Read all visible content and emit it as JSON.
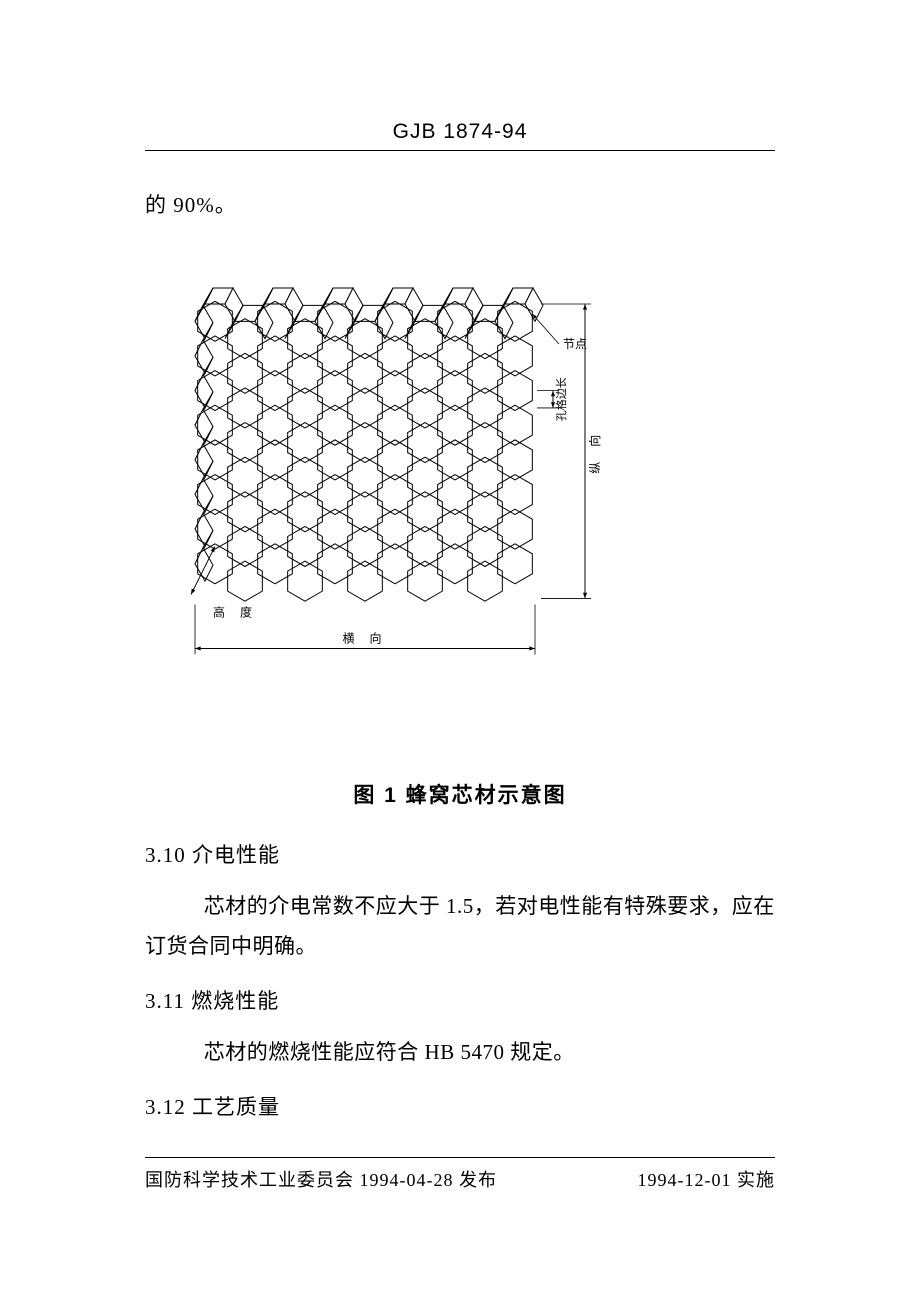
{
  "header": {
    "standard_code": "GJB 1874-94"
  },
  "top_text": "的 90%。",
  "figure": {
    "caption": "图 1    蜂窝芯材示意图",
    "labels": {
      "node": "节点",
      "cell_edge": "孔格边长",
      "longitudinal": "纵   向",
      "height": "高   度",
      "transverse": "横   向"
    },
    "style": {
      "stroke": "#000000",
      "stroke_width": 1,
      "text_color": "#000000",
      "label_fontsize": 12,
      "a": 20,
      "cols": 11,
      "rows": 8,
      "depth_dx": 8,
      "depth_dy": -16
    }
  },
  "sections": [
    {
      "num": "3.10",
      "title": "介电性能",
      "body": "芯材的介电常数不应大于 1.5，若对电性能有特殊要求，应在订货合同中明确。"
    },
    {
      "num": "3.11",
      "title": "燃烧性能",
      "body": "芯材的燃烧性能应符合 HB 5470 规定。"
    },
    {
      "num": "3.12",
      "title": "工艺质量",
      "body": ""
    }
  ],
  "footer": {
    "issuer": "国防科学技术工业委员会",
    "issue_date": "1994-04-28",
    "issue_word": "发布",
    "effect_date": "1994-12-01",
    "effect_word": "实施"
  }
}
